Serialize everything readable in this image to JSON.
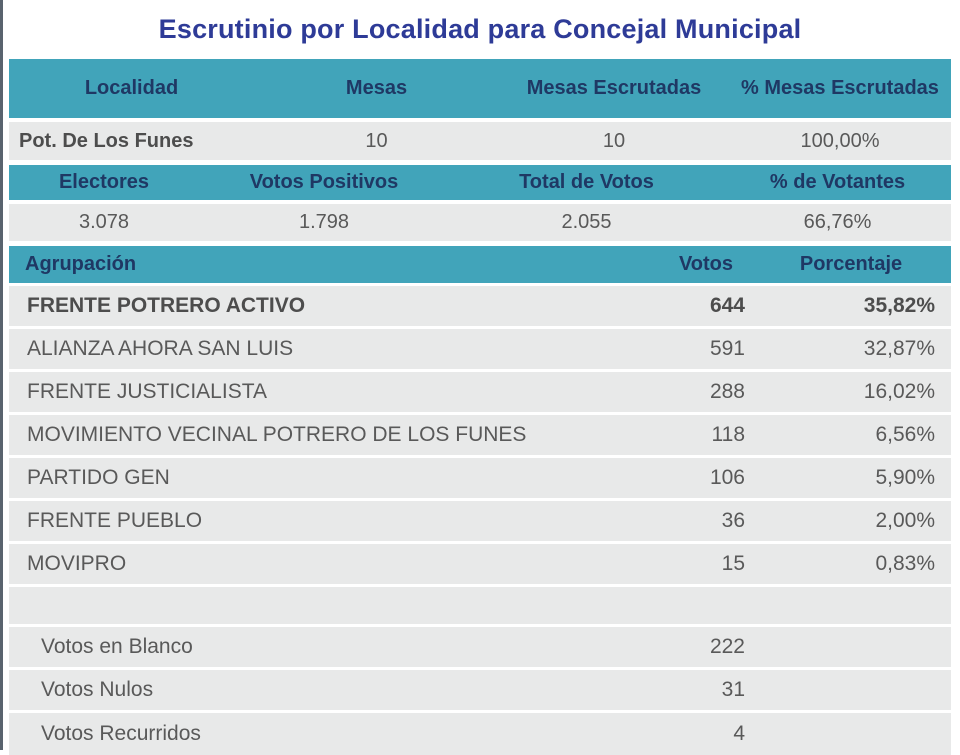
{
  "title": "Escrutinio por Localidad para Concejal Municipal",
  "colors": {
    "header_band": "#41A4BA",
    "header_text": "#1F3864",
    "title_text": "#2E3B97",
    "row_background": "#E8E9E9",
    "body_text": "#595959"
  },
  "locality_table": {
    "headers": [
      "Localidad",
      "Mesas",
      "Mesas Escrutadas",
      "% Mesas Escrutadas"
    ],
    "row": {
      "localidad": "Pot. De Los Funes",
      "mesas": "10",
      "mesas_escrutadas": "10",
      "pct_mesas_escrutadas": "100,00%"
    }
  },
  "turnout_table": {
    "headers": [
      "Electores",
      "Votos Positivos",
      "Total de Votos",
      "% de Votantes"
    ],
    "row": {
      "electores": "3.078",
      "votos_positivos": "1.798",
      "total_votos": "2.055",
      "pct_votantes": "66,76%"
    }
  },
  "results_table": {
    "headers": {
      "agrupacion": "Agrupación",
      "votos": "Votos",
      "porcentaje": "Porcentaje"
    },
    "parties": [
      {
        "name": "FRENTE POTRERO ACTIVO",
        "votos": "644",
        "pct": "35,82%"
      },
      {
        "name": "ALIANZA AHORA SAN LUIS",
        "votos": "591",
        "pct": "32,87%"
      },
      {
        "name": "FRENTE JUSTICIALISTA",
        "votos": "288",
        "pct": "16,02%"
      },
      {
        "name": "MOVIMIENTO VECINAL POTRERO DE LOS FUNES",
        "votos": "118",
        "pct": "6,56%"
      },
      {
        "name": "PARTIDO GEN",
        "votos": "106",
        "pct": "5,90%"
      },
      {
        "name": "FRENTE PUEBLO",
        "votos": "36",
        "pct": "2,00%"
      },
      {
        "name": "MOVIPRO",
        "votos": "15",
        "pct": "0,83%"
      }
    ],
    "special": [
      {
        "name": "Votos en Blanco",
        "votos": "222"
      },
      {
        "name": "Votos Nulos",
        "votos": "31"
      },
      {
        "name": "Votos Recurridos",
        "votos": "4"
      }
    ]
  }
}
